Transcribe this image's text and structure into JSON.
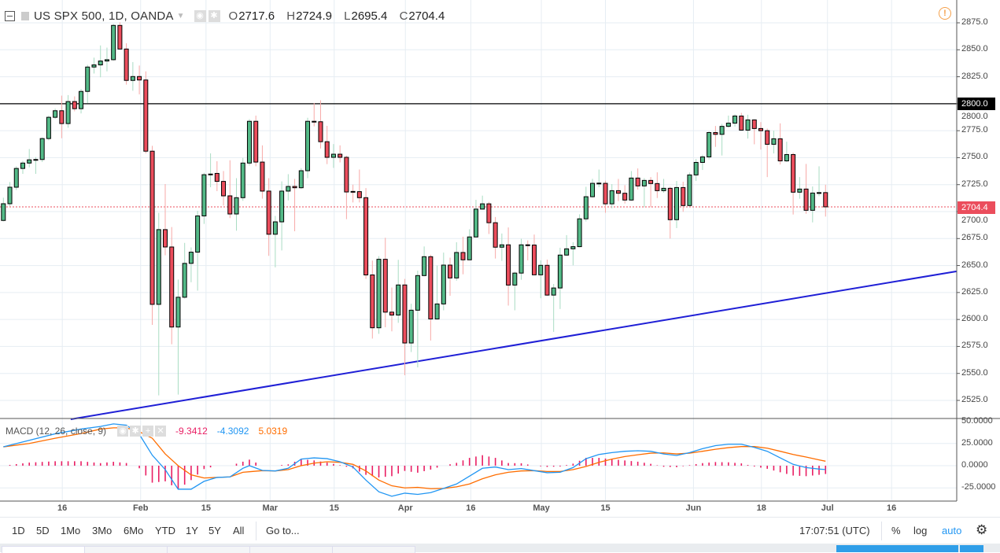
{
  "header": {
    "symbol": "US SPX 500, 1D, OANDA",
    "ohlc": [
      {
        "key": "O",
        "value": "2717.6"
      },
      {
        "key": "H",
        "value": "2724.9"
      },
      {
        "key": "L",
        "value": "2695.4"
      },
      {
        "key": "C",
        "value": "2704.4"
      }
    ]
  },
  "macd_legend": {
    "title": "MACD (12, 26, close, 9)",
    "histogram": "-9.3412",
    "macd": "-4.3092",
    "signal": "5.0319",
    "colors": {
      "histogram": "#e91e63",
      "macd": "#2196f3",
      "signal": "#ff6d00"
    }
  },
  "price_axis": {
    "ticks": [
      "2875.0",
      "2850.0",
      "2825.0",
      "2800.0",
      "2775.0",
      "2750.0",
      "2725.0",
      "2700.0",
      "2675.0",
      "2650.0",
      "2625.0",
      "2600.0",
      "2575.0",
      "2550.0",
      "2525.0"
    ],
    "horizontal_line_label": "2800.0",
    "last_price_label": "2704.4"
  },
  "macd_axis": {
    "ticks": [
      "50.0000",
      "25.0000",
      "0.0000",
      "-25.0000"
    ]
  },
  "time_axis": {
    "ticks": [
      "16",
      "Feb",
      "15",
      "Mar",
      "15",
      "Apr",
      "16",
      "May",
      "15",
      "Jun",
      "18",
      "Jul",
      "16"
    ]
  },
  "toolbar": {
    "ranges": [
      "1D",
      "5D",
      "1Mo",
      "3Mo",
      "6Mo",
      "YTD",
      "1Y",
      "5Y",
      "All"
    ],
    "goto": "Go to...",
    "clock": "17:07:51 (UTC)",
    "percent": "%",
    "log": "log",
    "auto": "auto",
    "icons": {
      "settings": "gear-icon",
      "alert": "alert-icon"
    }
  },
  "chart_data": [
    {
      "type": "candlestick",
      "title": "US SPX 500, 1D, OANDA",
      "ylim": [
        2512,
        2885
      ],
      "colors": {
        "up": "#53b987",
        "down": "#eb4d5c",
        "horizontal_line": "#000000",
        "trendline": "#1f1fd6"
      },
      "horizontal_line": 2800.0,
      "last_price": 2704.4,
      "trendline": [
        [
          10.4,
          2507.5
        ],
        [
          147.2,
          2644.6
        ]
      ],
      "ohlc": [
        [
          2691.8,
          2712.9,
          2691,
          2707.3
        ],
        [
          2707.3,
          2727.4,
          2705,
          2722.6
        ],
        [
          2722.6,
          2742,
          2720,
          2740
        ],
        [
          2740,
          2747,
          2735,
          2745
        ],
        [
          2745,
          2758,
          2741,
          2748
        ],
        [
          2748,
          2750.5,
          2735,
          2748.3
        ],
        [
          2748.3,
          2768.7,
          2746,
          2767.7
        ],
        [
          2767.7,
          2789,
          2766,
          2787.4
        ],
        [
          2787.4,
          2795.4,
          2786,
          2793.5
        ],
        [
          2793.5,
          2807.5,
          2768,
          2781.6
        ],
        [
          2781.6,
          2808,
          2777.7,
          2802
        ],
        [
          2802,
          2806.8,
          2793,
          2795.4
        ],
        [
          2795.4,
          2813.6,
          2791,
          2811.4
        ],
        [
          2811.4,
          2836,
          2800.7,
          2834
        ],
        [
          2834,
          2842.7,
          2828,
          2836
        ],
        [
          2836,
          2854,
          2824.5,
          2839.6
        ],
        [
          2839.6,
          2852,
          2830,
          2840.8
        ],
        [
          2840.8,
          2874,
          2840,
          2872.6
        ],
        [
          2872.6,
          2875.5,
          2850.7,
          2850.7
        ],
        [
          2850.7,
          2856,
          2817.7,
          2821.6
        ],
        [
          2821.6,
          2838.6,
          2812,
          2825.2
        ],
        [
          2825.2,
          2835.4,
          2808.7,
          2822
        ],
        [
          2822,
          2830,
          2754,
          2756
        ],
        [
          2756,
          2761,
          2595,
          2614
        ],
        [
          2614,
          2698.8,
          2529.6,
          2683.3
        ],
        [
          2683.3,
          2725.5,
          2659.5,
          2667.2
        ],
        [
          2667.2,
          2685.7,
          2577,
          2593
        ],
        [
          2593,
          2637,
          2530.4,
          2620.6
        ],
        [
          2620.6,
          2671,
          2619.4,
          2652
        ],
        [
          2652,
          2666.8,
          2634.5,
          2662.4
        ],
        [
          2662.4,
          2700.7,
          2626.7,
          2696
        ],
        [
          2696,
          2736,
          2688.6,
          2734.2
        ],
        [
          2734.6,
          2754,
          2722.6,
          2734.8
        ],
        [
          2735.4,
          2746.7,
          2719,
          2728
        ],
        [
          2728,
          2737.6,
          2705.6,
          2714.6
        ],
        [
          2714.6,
          2747.6,
          2694,
          2697.8
        ],
        [
          2697.8,
          2731,
          2682.3,
          2712.9
        ],
        [
          2712.9,
          2749.8,
          2710,
          2745
        ],
        [
          2745,
          2785.7,
          2742.7,
          2783.7
        ],
        [
          2783.7,
          2789,
          2742,
          2745.9
        ],
        [
          2745.9,
          2761.4,
          2712,
          2719
        ],
        [
          2719,
          2731,
          2659,
          2679
        ],
        [
          2679,
          2696,
          2648.3,
          2690.5
        ],
        [
          2690.5,
          2728,
          2664,
          2719
        ],
        [
          2719,
          2734.7,
          2710.4,
          2723.3
        ],
        [
          2723.3,
          2730.3,
          2681.8,
          2722.1
        ],
        [
          2722.1,
          2740.3,
          2720.9,
          2737.9
        ],
        [
          2737.9,
          2787,
          2731,
          2783.7
        ],
        [
          2783.7,
          2800.7,
          2779,
          2783.3
        ],
        [
          2783.3,
          2803.2,
          2758.5,
          2764.8
        ],
        [
          2764.8,
          2779.5,
          2744,
          2750.3
        ],
        [
          2750.3,
          2762.6,
          2740.5,
          2753.2
        ],
        [
          2753.2,
          2761.4,
          2745.6,
          2750.3
        ],
        [
          2750.3,
          2751.8,
          2693,
          2718.2
        ],
        [
          2718.7,
          2725,
          2708.5,
          2718.5
        ],
        [
          2718.5,
          2739,
          2708.5,
          2712.9
        ],
        [
          2712.9,
          2721.8,
          2637.6,
          2641.3
        ],
        [
          2641.3,
          2654.6,
          2582.3,
          2592.3
        ],
        [
          2592.3,
          2658.7,
          2586.7,
          2655.8
        ],
        [
          2655.8,
          2675.7,
          2592.8,
          2606.8
        ],
        [
          2606.8,
          2629.6,
          2589,
          2604.1
        ],
        [
          2604.1,
          2655.3,
          2596.9,
          2632
        ],
        [
          2632,
          2637.6,
          2548.3,
          2578.2
        ],
        [
          2578.2,
          2614.6,
          2569.8,
          2608.6
        ],
        [
          2608.6,
          2645.3,
          2555.6,
          2640.7
        ],
        [
          2640.7,
          2667.7,
          2640,
          2658.2
        ],
        [
          2658.2,
          2660,
          2580.5,
          2600.5
        ],
        [
          2600.5,
          2650,
          2600,
          2614.4
        ],
        [
          2614.4,
          2662,
          2608.5,
          2650.4
        ],
        [
          2650.4,
          2657.3,
          2622,
          2638.5
        ],
        [
          2638.5,
          2671.6,
          2636,
          2662.1
        ],
        [
          2662.1,
          2676.7,
          2641.9,
          2655.3
        ],
        [
          2655.3,
          2683.6,
          2655,
          2676.5
        ],
        [
          2676.5,
          2710.9,
          2676,
          2702.3
        ],
        [
          2702.3,
          2714.8,
          2701.8,
          2707.2
        ],
        [
          2707.2,
          2709,
          2679.2,
          2689.7
        ],
        [
          2689.7,
          2695,
          2656.5,
          2667
        ],
        [
          2667,
          2679.7,
          2654.3,
          2669.2
        ],
        [
          2669.2,
          2685.3,
          2612.9,
          2631.9
        ],
        [
          2631.9,
          2644.3,
          2608.5,
          2643
        ],
        [
          2643,
          2674.8,
          2636.8,
          2669.2
        ],
        [
          2669.2,
          2673.3,
          2654.8,
          2669
        ],
        [
          2669,
          2678.7,
          2641,
          2641.4
        ],
        [
          2641.4,
          2654.8,
          2619.7,
          2650.2
        ],
        [
          2650.2,
          2655.5,
          2622,
          2622.6
        ],
        [
          2622.6,
          2632.9,
          2588.5,
          2629.2
        ],
        [
          2629.2,
          2666.5,
          2609.7,
          2659.7
        ],
        [
          2659.7,
          2678.2,
          2659,
          2665.5
        ],
        [
          2665.5,
          2671.6,
          2650.2,
          2667.5
        ],
        [
          2667.5,
          2697.5,
          2667,
          2693.3
        ],
        [
          2693.3,
          2723,
          2690.9,
          2713.8
        ],
        [
          2713.8,
          2730.4,
          2713,
          2726.2
        ],
        [
          2726.2,
          2739,
          2722.6,
          2726.4
        ],
        [
          2726.2,
          2728.7,
          2698.9,
          2707.2
        ],
        [
          2707.2,
          2725.5,
          2703,
          2719.4
        ],
        [
          2719.4,
          2730.3,
          2709.7,
          2717
        ],
        [
          2717,
          2724.5,
          2707.5,
          2710.7
        ],
        [
          2710.7,
          2737.6,
          2710,
          2731.1
        ],
        [
          2731.1,
          2740,
          2720.4,
          2723.8
        ],
        [
          2723.8,
          2731,
          2704,
          2728.9
        ],
        [
          2728.9,
          2732,
          2704,
          2726
        ],
        [
          2726,
          2736.4,
          2712.6,
          2719.4
        ],
        [
          2719.4,
          2730.3,
          2717.5,
          2721.6
        ],
        [
          2721.6,
          2723,
          2675,
          2692.5
        ],
        [
          2692.5,
          2728.4,
          2684.7,
          2722.3
        ],
        [
          2722.3,
          2727.7,
          2699.8,
          2705.6
        ],
        [
          2705.6,
          2736.2,
          2705,
          2734
        ],
        [
          2734,
          2748.8,
          2728.4,
          2745.6
        ],
        [
          2745.6,
          2752.7,
          2738.6,
          2750.7
        ],
        [
          2750.7,
          2774.5,
          2748.3,
          2773.3
        ],
        [
          2773.3,
          2779.4,
          2760,
          2771.6
        ],
        [
          2771.6,
          2781.3,
          2752,
          2779
        ],
        [
          2779,
          2789,
          2778,
          2782
        ],
        [
          2782,
          2790.3,
          2778.9,
          2788.6
        ],
        [
          2788.6,
          2791.5,
          2775,
          2775.5
        ],
        [
          2775.5,
          2789.8,
          2767.7,
          2785
        ],
        [
          2785,
          2785.5,
          2762.4,
          2777
        ],
        [
          2777,
          2783,
          2757.5,
          2775
        ],
        [
          2775,
          2777,
          2732,
          2762.4
        ],
        [
          2762.4,
          2775,
          2753.9,
          2767.5
        ],
        [
          2767.5,
          2781.8,
          2743.7,
          2747
        ],
        [
          2747,
          2764.8,
          2746,
          2752.9
        ],
        [
          2752.9,
          2754.6,
          2697.3,
          2718
        ],
        [
          2718,
          2732,
          2711.9,
          2720.9
        ],
        [
          2720.9,
          2744.2,
          2698,
          2701.2
        ],
        [
          2701.2,
          2723.3,
          2690,
          2717.2
        ],
        [
          2717.2,
          2742,
          2714.3,
          2717.6
        ],
        [
          2717.6,
          2724.9,
          2695.4,
          2704.4
        ]
      ]
    },
    {
      "type": "line",
      "title": "MACD (12, 26, close, 9)",
      "ylim": [
        -38,
        52
      ],
      "series_format": "[bar, macd, signal]",
      "points": [
        [
          0,
          21.2,
          21.2
        ],
        [
          4,
          28.5,
          25
        ],
        [
          8,
          35.9,
          30.9
        ],
        [
          12,
          41.2,
          36.2
        ],
        [
          15,
          44.1,
          41.2
        ],
        [
          17,
          47,
          42.6
        ],
        [
          19,
          45.6,
          42.6
        ],
        [
          21,
          35.3,
          38.2
        ],
        [
          23,
          11.8,
          30.9
        ],
        [
          25,
          -4.4,
          13.2
        ],
        [
          27,
          -26.5,
          0
        ],
        [
          29,
          -26.5,
          -10.3
        ],
        [
          31,
          -17.6,
          -13.8
        ],
        [
          33,
          -13.2,
          -13.2
        ],
        [
          35,
          -12.6,
          -12.6
        ],
        [
          37,
          -2.9,
          -7.4
        ],
        [
          38,
          0,
          -6.8
        ],
        [
          40,
          -5.3,
          -5.6
        ],
        [
          42,
          -5.9,
          -5.9
        ],
        [
          44,
          -2.9,
          -4.4
        ],
        [
          46,
          7.4,
          0
        ],
        [
          48,
          8.8,
          2.9
        ],
        [
          50,
          7.9,
          4.4
        ],
        [
          52,
          4.4,
          3.8
        ],
        [
          54,
          -1.5,
          1.5
        ],
        [
          56,
          -16.2,
          -5.9
        ],
        [
          58,
          -29.4,
          -16.2
        ],
        [
          60,
          -34.4,
          -22.6
        ],
        [
          62,
          -30.9,
          -25
        ],
        [
          64,
          -32.3,
          -24.4
        ],
        [
          66,
          -30.3,
          -25.9
        ],
        [
          68,
          -25.6,
          -25.6
        ],
        [
          70,
          -20.6,
          -23.8
        ],
        [
          72,
          -11.8,
          -20.6
        ],
        [
          74,
          -2.9,
          -14.7
        ],
        [
          76,
          -1.5,
          -10.3
        ],
        [
          78,
          -4.4,
          -7.4
        ],
        [
          80,
          -3.2,
          -5.9
        ],
        [
          82,
          -5.6,
          -5.6
        ],
        [
          84,
          -7.9,
          -6.5
        ],
        [
          86,
          -7.4,
          -6.5
        ],
        [
          88,
          -2.1,
          -4.4
        ],
        [
          90,
          7.9,
          -0.9
        ],
        [
          92,
          12.6,
          3.8
        ],
        [
          94,
          14.7,
          7.4
        ],
        [
          96,
          16.2,
          10.3
        ],
        [
          98,
          16.8,
          12.3
        ],
        [
          100,
          16.2,
          14.1
        ],
        [
          102,
          13.2,
          14.4
        ],
        [
          104,
          11.5,
          13.2
        ],
        [
          106,
          14.7,
          14.1
        ],
        [
          108,
          19.1,
          16.2
        ],
        [
          110,
          22.6,
          18.5
        ],
        [
          112,
          24.1,
          20.3
        ],
        [
          114,
          24.1,
          21.5
        ],
        [
          116,
          20.6,
          21.5
        ],
        [
          118,
          16.2,
          19.7
        ],
        [
          120,
          8.8,
          16.2
        ],
        [
          122,
          1.5,
          12.6
        ],
        [
          124,
          -2.1,
          9.7
        ],
        [
          126,
          -3.8,
          6.5
        ],
        [
          127,
          -4.3092,
          5.0319
        ]
      ]
    }
  ]
}
